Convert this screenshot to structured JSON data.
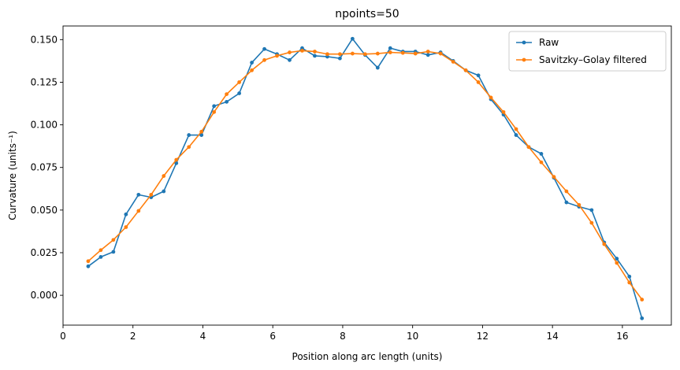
{
  "chart_data": {
    "type": "line",
    "title": "npoints=50",
    "xlabel": "Position along arc length (units)",
    "ylabel": "Curvature (units⁻¹)",
    "xlim": [
      0,
      17.4
    ],
    "ylim": [
      -0.0175,
      0.158
    ],
    "xticks": [
      0,
      2,
      4,
      6,
      8,
      10,
      12,
      14,
      16
    ],
    "yticks": [
      0.0,
      0.025,
      0.05,
      0.075,
      0.1,
      0.125,
      0.15
    ],
    "xtick_labels": [
      "0",
      "2",
      "4",
      "6",
      "8",
      "10",
      "12",
      "14",
      "16"
    ],
    "ytick_labels": [
      "0.000",
      "0.025",
      "0.050",
      "0.075",
      "0.100",
      "0.125",
      "0.150"
    ],
    "grid": false,
    "legend_position": "top-right",
    "x": [
      0.72,
      1.08,
      1.44,
      1.8,
      2.16,
      2.52,
      2.88,
      3.24,
      3.6,
      3.96,
      4.32,
      4.68,
      5.04,
      5.4,
      5.76,
      6.12,
      6.48,
      6.84,
      7.2,
      7.56,
      7.92,
      8.28,
      8.64,
      9.0,
      9.36,
      9.72,
      10.08,
      10.44,
      10.8,
      11.16,
      11.52,
      11.88,
      12.24,
      12.6,
      12.96,
      13.32,
      13.68,
      14.04,
      14.4,
      14.76,
      15.12,
      15.48,
      15.84,
      16.2,
      16.56
    ],
    "series": [
      {
        "name": "Raw",
        "color": "#1f77b4",
        "values": [
          0.017,
          0.0225,
          0.0255,
          0.0475,
          0.059,
          0.0575,
          0.061,
          0.0775,
          0.094,
          0.094,
          0.111,
          0.1135,
          0.1185,
          0.1365,
          0.1445,
          0.1415,
          0.138,
          0.145,
          0.1405,
          0.14,
          0.139,
          0.1505,
          0.141,
          0.1335,
          0.145,
          0.143,
          0.143,
          0.141,
          0.1425,
          0.1375,
          0.132,
          0.129,
          0.115,
          0.106,
          0.094,
          0.087,
          0.083,
          0.069,
          0.0545,
          0.052,
          0.05,
          0.031,
          0.0215,
          0.011,
          -0.0135
        ]
      },
      {
        "name": "Savitzky–Golay filtered",
        "color": "#ff7f0e",
        "values": [
          0.02,
          0.0265,
          0.0325,
          0.04,
          0.0495,
          0.059,
          0.07,
          0.0795,
          0.087,
          0.096,
          0.1075,
          0.118,
          0.125,
          0.132,
          0.138,
          0.1405,
          0.1425,
          0.1435,
          0.143,
          0.1415,
          0.1415,
          0.1418,
          0.1415,
          0.1418,
          0.1425,
          0.1422,
          0.1418,
          0.143,
          0.1418,
          0.137,
          0.132,
          0.125,
          0.116,
          0.1075,
          0.0975,
          0.087,
          0.078,
          0.0695,
          0.061,
          0.053,
          0.0425,
          0.03,
          0.019,
          0.0075,
          -0.0025
        ]
      }
    ]
  }
}
